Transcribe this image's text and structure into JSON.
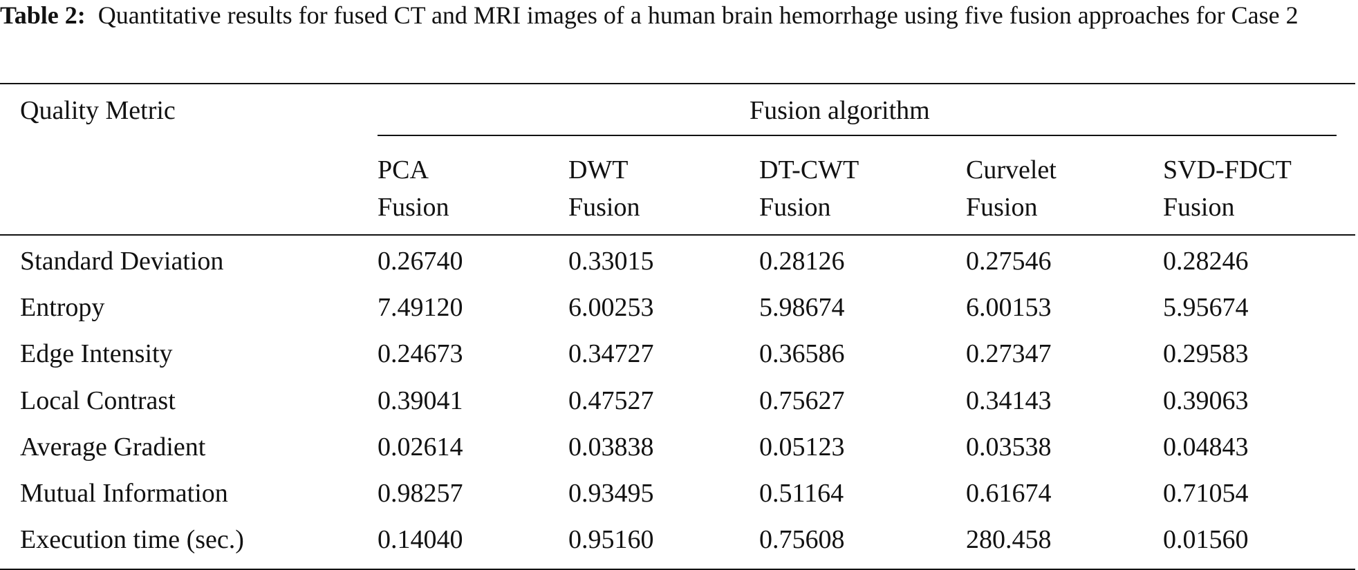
{
  "caption": {
    "label": "Table 2:",
    "text": "Quantitative results for fused CT and MRI images of a human brain hemorrhage using five fusion approaches for Case 2"
  },
  "table": {
    "stub_header": "Quality Metric",
    "group_header": "Fusion algorithm",
    "columns": [
      {
        "line1": "PCA",
        "line2": "Fusion"
      },
      {
        "line1": "DWT",
        "line2": "Fusion"
      },
      {
        "line1": "DT-CWT",
        "line2": "Fusion"
      },
      {
        "line1": "Curvelet",
        "line2": "Fusion"
      },
      {
        "line1": "SVD-FDCT",
        "line2": "Fusion"
      }
    ],
    "rows": [
      {
        "metric": "Standard Deviation",
        "values": [
          "0.26740",
          "0.33015",
          "0.28126",
          "0.27546",
          "0.28246"
        ]
      },
      {
        "metric": "Entropy",
        "values": [
          "7.49120",
          "6.00253",
          "5.98674",
          "6.00153",
          "5.95674"
        ]
      },
      {
        "metric": "Edge Intensity",
        "values": [
          "0.24673",
          "0.34727",
          "0.36586",
          "0.27347",
          "0.29583"
        ]
      },
      {
        "metric": "Local Contrast",
        "values": [
          "0.39041",
          "0.47527",
          "0.75627",
          "0.34143",
          "0.39063"
        ]
      },
      {
        "metric": "Average Gradient",
        "values": [
          "0.02614",
          "0.03838",
          "0.05123",
          "0.03538",
          "0.04843"
        ]
      },
      {
        "metric": "Mutual Information",
        "values": [
          "0.98257",
          "0.93495",
          "0.51164",
          "0.61674",
          "0.71054"
        ]
      },
      {
        "metric": "Execution time (sec.)",
        "values": [
          "0.14040",
          "0.95160",
          "0.75608",
          "280.458",
          "0.01560"
        ]
      }
    ]
  }
}
